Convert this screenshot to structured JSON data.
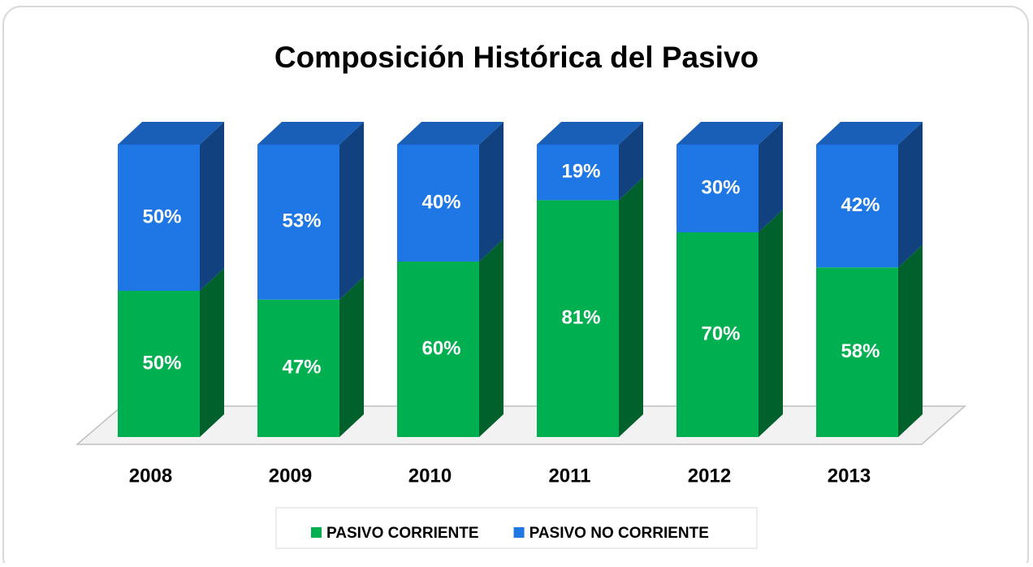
{
  "chart_data": {
    "type": "stacked_bar_3d",
    "title": "Composición Histórica del Pasivo",
    "categories": [
      "2008",
      "2009",
      "2010",
      "2011",
      "2012",
      "2013"
    ],
    "series": [
      {
        "name": "PASIVO CORRIENTE",
        "color": "#00b050",
        "values": [
          50,
          47,
          60,
          81,
          70,
          58
        ],
        "value_labels": [
          "50%",
          "47%",
          "60%",
          "81%",
          "70%",
          "58%"
        ]
      },
      {
        "name": "PASIVO NO CORRIENTE",
        "color": "#1f77e6",
        "values": [
          50,
          53,
          40,
          19,
          30,
          42
        ],
        "value_labels": [
          "50%",
          "53%",
          "40%",
          "19%",
          "30%",
          "42%"
        ]
      }
    ],
    "ylim": [
      0,
      100
    ],
    "legend": "bottom"
  }
}
